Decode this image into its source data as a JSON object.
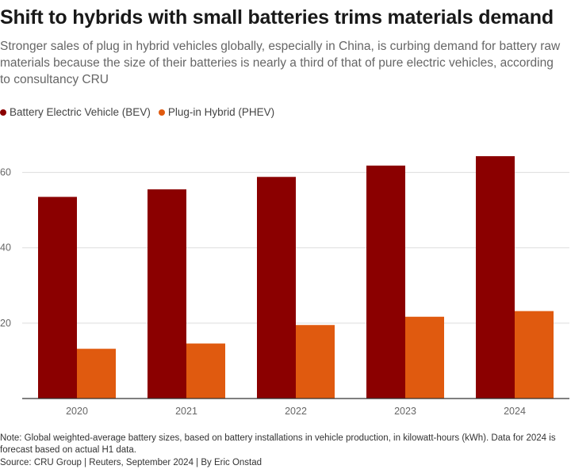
{
  "title": "Shift to hybrids with small batteries trims materials demand",
  "subtitle": "Stronger sales of plug in hybrid vehicles globally, especially in China, is curbing demand for battery raw materials because the size of their batteries is nearly a third of that of pure electric vehicles, according to consultancy CRU",
  "note": "Note: Global weighted-average battery sizes, based on battery installations in vehicle production, in kilowatt-hours (kWh). Data for 2024 is forecast based on actual H1 data.",
  "source": "Source: CRU Group | Reuters, September 2024 | By Eric Onstad",
  "colors": {
    "bev": "#8b0000",
    "phev": "#e05a0f",
    "grid": "#dddddd",
    "axis": "#333333"
  },
  "chart_data": {
    "type": "bar",
    "title": "Shift to hybrids with small batteries trims materials demand",
    "xlabel": "",
    "ylabel": "",
    "ylim": [
      0,
      70
    ],
    "yticks": [
      20,
      40,
      60
    ],
    "grid": true,
    "legend": "top-left",
    "categories": [
      "2020",
      "2021",
      "2022",
      "2023",
      "2024"
    ],
    "series": [
      {
        "name": "Battery Electric Vehicle (BEV)",
        "values": [
          53.5,
          55.5,
          58.8,
          61.8,
          64.3
        ]
      },
      {
        "name": "Plug-in Hybrid (PHEV)",
        "values": [
          13.2,
          14.6,
          19.5,
          21.7,
          23.2
        ]
      }
    ]
  }
}
